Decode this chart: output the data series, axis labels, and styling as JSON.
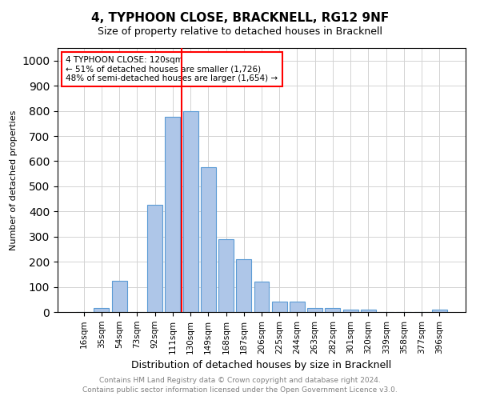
{
  "title": "4, TYPHOON CLOSE, BRACKNELL, RG12 9NF",
  "subtitle": "Size of property relative to detached houses in Bracknell",
  "xlabel": "Distribution of detached houses by size in Bracknell",
  "ylabel": "Number of detached properties",
  "categories": [
    "16sqm",
    "35sqm",
    "54sqm",
    "73sqm",
    "92sqm",
    "111sqm",
    "130sqm",
    "149sqm",
    "168sqm",
    "187sqm",
    "206sqm",
    "225sqm",
    "244sqm",
    "263sqm",
    "282sqm",
    "301sqm",
    "320sqm",
    "339sqm",
    "358sqm",
    "377sqm",
    "396sqm"
  ],
  "values": [
    0,
    15,
    125,
    0,
    425,
    775,
    800,
    575,
    290,
    210,
    120,
    40,
    40,
    15,
    15,
    10,
    10,
    0,
    0,
    0,
    10
  ],
  "bar_color": "#aec6e8",
  "bar_edge_color": "#5b9bd5",
  "vline_color": "red",
  "vline_x_index": 6.0,
  "annotation_title": "4 TYPHOON CLOSE: 120sqm",
  "annotation_line1": "← 51% of detached houses are smaller (1,726)",
  "annotation_line2": "48% of semi-detached houses are larger (1,654) →",
  "annotation_box_color": "red",
  "ylim": [
    0,
    1050
  ],
  "yticks": [
    0,
    100,
    200,
    300,
    400,
    500,
    600,
    700,
    800,
    900,
    1000
  ],
  "footnote1": "Contains HM Land Registry data © Crown copyright and database right 2024.",
  "footnote2": "Contains public sector information licensed under the Open Government Licence v3.0.",
  "title_fontsize": 11,
  "subtitle_fontsize": 9,
  "ylabel_fontsize": 8,
  "xlabel_fontsize": 9,
  "tick_fontsize": 7.5,
  "footnote_fontsize": 6.5
}
